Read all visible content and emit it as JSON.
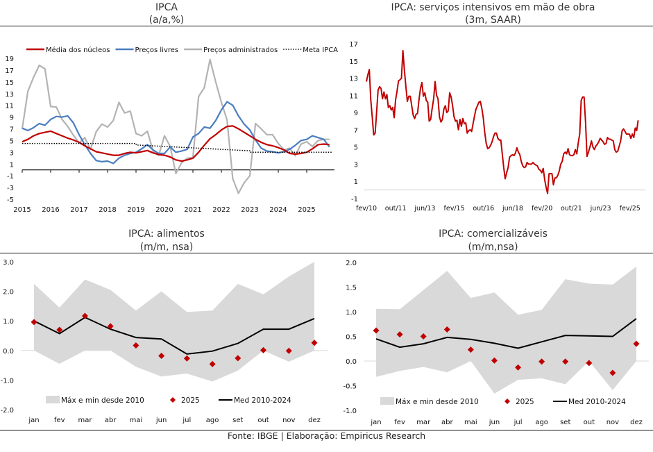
{
  "source": "Fonte: IBGE | Elaboração: Empiricus Research",
  "colors": {
    "red": "#C00000",
    "blue": "#4A7EC0",
    "gray": "#B3B3B3",
    "band": "#D9D9D9",
    "black": "#000000"
  },
  "chart_data": [
    {
      "id": "ipca",
      "type": "line",
      "title": "IPCA",
      "subtitle": "(a/a,%)",
      "ylim": [
        -5,
        19
      ],
      "yticks": [
        -5,
        -3,
        -1,
        1,
        3,
        5,
        7,
        9,
        11,
        13,
        15,
        17,
        19
      ],
      "xticks": [
        "2015",
        "2016",
        "2017",
        "2018",
        "2019",
        "2020",
        "2021",
        "2022",
        "2023",
        "2024",
        "2025"
      ],
      "xlim": [
        2015,
        2025.9
      ],
      "legend_position": "top",
      "series": [
        {
          "name": "Média dos núcleos",
          "color": "#C00000",
          "style": "solid",
          "x": [
            2015,
            2015.2,
            2015.4,
            2015.6,
            2015.8,
            2016,
            2016.2,
            2016.4,
            2016.6,
            2016.8,
            2017,
            2017.2,
            2017.4,
            2017.6,
            2017.8,
            2018,
            2018.2,
            2018.4,
            2018.6,
            2018.8,
            2019,
            2019.2,
            2019.4,
            2019.6,
            2019.8,
            2020,
            2020.2,
            2020.4,
            2020.6,
            2020.8,
            2021,
            2021.2,
            2021.4,
            2021.6,
            2021.8,
            2022,
            2022.2,
            2022.4,
            2022.6,
            2022.8,
            2023,
            2023.2,
            2023.4,
            2023.6,
            2023.8,
            2024,
            2024.2,
            2024.4,
            2024.6,
            2024.8,
            2025,
            2025.2,
            2025.4,
            2025.6,
            2025.8
          ],
          "y": [
            4.8,
            5.2,
            5.8,
            6.2,
            6.4,
            6.6,
            6.2,
            5.8,
            5.4,
            5.1,
            4.7,
            4.1,
            3.6,
            3.1,
            2.9,
            2.7,
            2.5,
            2.5,
            2.8,
            3.0,
            2.9,
            3.1,
            3.3,
            2.9,
            2.6,
            2.5,
            2.2,
            1.7,
            1.5,
            1.7,
            2.0,
            3.0,
            4.2,
            5.3,
            6.0,
            6.8,
            7.4,
            7.5,
            7.0,
            6.4,
            5.8,
            5.2,
            4.7,
            4.3,
            4.1,
            3.8,
            3.4,
            2.8,
            2.7,
            2.8,
            3.0,
            3.6,
            4.3,
            4.4,
            4.3
          ]
        },
        {
          "name": "Preços livres",
          "color": "#4A7EC0",
          "style": "solid",
          "x": [
            2015,
            2015.2,
            2015.4,
            2015.6,
            2015.8,
            2016,
            2016.2,
            2016.4,
            2016.6,
            2016.8,
            2017,
            2017.2,
            2017.4,
            2017.6,
            2017.8,
            2018,
            2018.2,
            2018.4,
            2018.6,
            2018.8,
            2019,
            2019.2,
            2019.4,
            2019.6,
            2019.8,
            2020,
            2020.2,
            2020.4,
            2020.6,
            2020.8,
            2021,
            2021.2,
            2021.4,
            2021.6,
            2021.8,
            2022,
            2022.2,
            2022.4,
            2022.6,
            2022.8,
            2023,
            2023.2,
            2023.4,
            2023.6,
            2023.8,
            2024,
            2024.2,
            2024.4,
            2024.6,
            2024.8,
            2025,
            2025.2,
            2025.4,
            2025.6,
            2025.8
          ],
          "y": [
            7.1,
            6.7,
            7.2,
            7.9,
            7.6,
            8.6,
            9.1,
            9.0,
            9.2,
            8.0,
            6.0,
            4.3,
            2.8,
            1.6,
            1.4,
            1.5,
            1.1,
            2.0,
            2.5,
            2.8,
            3.0,
            3.6,
            4.3,
            3.4,
            2.8,
            2.8,
            3.9,
            3.0,
            3.2,
            3.5,
            5.6,
            6.2,
            7.3,
            7.1,
            8.4,
            10.2,
            11.6,
            11.0,
            9.2,
            7.8,
            6.8,
            5.1,
            3.7,
            3.2,
            3.1,
            2.9,
            3.1,
            3.5,
            4.2,
            5.0,
            5.2,
            5.8,
            5.5,
            5.2,
            3.9
          ]
        },
        {
          "name": "Preços administrados",
          "color": "#B3B3B3",
          "style": "solid",
          "x": [
            2015,
            2015.2,
            2015.4,
            2015.6,
            2015.8,
            2016,
            2016.2,
            2016.4,
            2016.6,
            2016.8,
            2017,
            2017.2,
            2017.4,
            2017.6,
            2017.8,
            2018,
            2018.2,
            2018.4,
            2018.6,
            2018.8,
            2019,
            2019.2,
            2019.4,
            2019.6,
            2019.8,
            2020,
            2020.2,
            2020.4,
            2020.6,
            2020.8,
            2021,
            2021.2,
            2021.4,
            2021.6,
            2021.8,
            2022,
            2022.2,
            2022.4,
            2022.6,
            2022.8,
            2023,
            2023.2,
            2023.4,
            2023.6,
            2023.8,
            2024,
            2024.2,
            2024.4,
            2024.6,
            2024.8,
            2025,
            2025.2,
            2025.4,
            2025.6,
            2025.8
          ],
          "y": [
            7.0,
            13.4,
            15.8,
            17.8,
            17.2,
            10.8,
            10.7,
            8.6,
            7.4,
            5.9,
            4.6,
            5.5,
            3.5,
            6.5,
            7.8,
            7.3,
            8.4,
            11.5,
            9.7,
            10.0,
            6.2,
            5.8,
            6.6,
            3.2,
            2.5,
            5.8,
            4.0,
            -0.6,
            1.2,
            2.0,
            2.1,
            12.5,
            14.0,
            18.8,
            15.0,
            11.5,
            8.5,
            -1.5,
            -4.0,
            -2.2,
            -1.0,
            7.9,
            7.0,
            6.0,
            6.0,
            4.5,
            3.4,
            3.7,
            2.4,
            4.4,
            4.8,
            4.0,
            5.0,
            5.2,
            5.2
          ]
        },
        {
          "name": "Meta IPCA",
          "color": "#000000",
          "style": "dotted",
          "x": [
            2015,
            2016,
            2017,
            2018,
            2019,
            2019.01,
            2020,
            2021,
            2021.01,
            2022,
            2022.01,
            2023,
            2023.01,
            2024,
            2025,
            2025.9
          ],
          "y": [
            4.5,
            4.5,
            4.5,
            4.5,
            4.5,
            4.25,
            4.0,
            3.75,
            3.75,
            3.5,
            3.5,
            3.25,
            3.0,
            3.0,
            3.0,
            3.0
          ]
        }
      ]
    },
    {
      "id": "servicos",
      "type": "line",
      "title": "IPCA: serviços intensivos em mão de obra",
      "subtitle": "(3m, SAAR)",
      "ylim": [
        -1,
        17
      ],
      "yticks": [
        -1,
        1,
        3,
        5,
        7,
        9,
        11,
        13,
        15,
        17
      ],
      "xticks": [
        "fev/10",
        "out/11",
        "jun/13",
        "fev/15",
        "out/16",
        "jun/18",
        "fev/20",
        "out/21",
        "jun/23",
        "fev/25"
      ],
      "series": [
        {
          "name": "Serviços intensivos em mão de obra",
          "color": "#C00000",
          "t": [
            0,
            1,
            2,
            3,
            4,
            5,
            6,
            7,
            8,
            9,
            10,
            11,
            12,
            13,
            14,
            15,
            16,
            17,
            18,
            19,
            20,
            21,
            22,
            23,
            24,
            25,
            26,
            27,
            28,
            29,
            30,
            31,
            32,
            33,
            34,
            35,
            36,
            37,
            38,
            39,
            40,
            41,
            42,
            43,
            44,
            45,
            46,
            47,
            48,
            49,
            50,
            51,
            52,
            53,
            54,
            55,
            56,
            57,
            58,
            59,
            60,
            61,
            62,
            63,
            64,
            65,
            66,
            67,
            68,
            69,
            70,
            71,
            72,
            73,
            74,
            75,
            76,
            77,
            78,
            79,
            80,
            81,
            82,
            83,
            84,
            85,
            86,
            87,
            88,
            89,
            90,
            91,
            92,
            93,
            94,
            95,
            96,
            97,
            98,
            99,
            100,
            101,
            102,
            103,
            104,
            105,
            106,
            107,
            108,
            109,
            110,
            111,
            112,
            113,
            114,
            115,
            116,
            117,
            118,
            119,
            120,
            121,
            122,
            123,
            124,
            125,
            126,
            127,
            128,
            129,
            130,
            131,
            132,
            133,
            134,
            135,
            136,
            137,
            138,
            139,
            140,
            141,
            142,
            143,
            144,
            145,
            146,
            147,
            148,
            149,
            150,
            151,
            152,
            153,
            154,
            155,
            156,
            157,
            158,
            159,
            160,
            161,
            162,
            163,
            164,
            165,
            166,
            167,
            168,
            169,
            170,
            171,
            172,
            173,
            174,
            175,
            176,
            177,
            178,
            179,
            180,
            181,
            182,
            183,
            184,
            185,
            186,
            187
          ],
          "y": [
            12.6,
            13.4,
            14.0,
            10.5,
            8.5,
            6.4,
            6.6,
            9.0,
            11.6,
            12.0,
            11.8,
            10.6,
            11.4,
            10.6,
            11.1,
            9.6,
            9.8,
            9.3,
            9.6,
            8.4,
            10.5,
            11.5,
            12.7,
            12.8,
            13.0,
            16.2,
            14.0,
            12.0,
            10.3,
            10.9,
            10.9,
            9.8,
            8.7,
            8.3,
            8.8,
            8.9,
            10.5,
            11.8,
            12.5,
            10.9,
            11.3,
            10.4,
            10.2,
            8.0,
            8.2,
            9.5,
            10.6,
            12.6,
            11.0,
            10.6,
            8.5,
            7.9,
            8.2,
            9.4,
            9.8,
            9.0,
            9.2,
            11.3,
            10.8,
            9.8,
            8.5,
            8.0,
            8.1,
            7.0,
            8.2,
            7.4,
            8.3,
            7.7,
            7.8,
            6.6,
            6.9,
            7.0,
            6.8,
            7.7,
            8.6,
            9.4,
            9.8,
            10.2,
            10.3,
            9.5,
            8.4,
            6.7,
            5.4,
            4.8,
            4.9,
            5.2,
            5.6,
            6.2,
            6.6,
            6.6,
            6.0,
            5.8,
            5.8,
            4.2,
            2.6,
            1.3,
            2.0,
            2.6,
            3.8,
            4.0,
            4.1,
            4.0,
            4.3,
            4.9,
            4.4,
            4.1,
            3.3,
            2.8,
            2.6,
            2.7,
            3.2,
            3.0,
            3.0,
            3.0,
            3.2,
            3.0,
            2.9,
            2.8,
            2.4,
            2.3,
            2.0,
            2.5,
            1.2,
            0.3,
            -0.4,
            1.9,
            1.9,
            1.9,
            0.6,
            1.4,
            1.4,
            1.7,
            2.2,
            3.0,
            3.3,
            4.2,
            4.4,
            4.2,
            4.8,
            4.1,
            4.0,
            4.0,
            4.1,
            4.7,
            4.2,
            5.5,
            6.5,
            10.4,
            10.8,
            10.8,
            7.9,
            3.9,
            4.4,
            5.0,
            5.7,
            5.0,
            4.7,
            5.1,
            5.3,
            5.6,
            6.0,
            5.8,
            5.6,
            5.3,
            5.4,
            6.1,
            5.9,
            5.9,
            5.8,
            5.7,
            4.7,
            4.4,
            4.5,
            5.1,
            5.7,
            6.9,
            7.1,
            6.8,
            6.5,
            6.5,
            6.5,
            6.0,
            6.5,
            6.1,
            7.2,
            6.9,
            8.1
          ]
        }
      ]
    },
    {
      "id": "alimentos",
      "type": "area",
      "title": "IPCA: alimentos",
      "subtitle": "(m/m, nsa)",
      "ylim": [
        -2.0,
        3.0
      ],
      "yticks": [
        "-2.0",
        "-1.0",
        "0.0",
        "1.0",
        "2.0",
        "3.0"
      ],
      "categories": [
        "jan",
        "fev",
        "mar",
        "abr",
        "mai",
        "jun",
        "jul",
        "ago",
        "set",
        "out",
        "nov",
        "dez"
      ],
      "legend_position": "bottom",
      "band": {
        "name": "Máx e min desde 2010",
        "max": [
          2.25,
          1.45,
          2.4,
          2.05,
          1.35,
          2.0,
          1.3,
          1.35,
          2.25,
          1.9,
          2.5,
          3.0
        ],
        "min": [
          0.0,
          -0.45,
          0.0,
          0.0,
          -0.55,
          -0.88,
          -0.78,
          -1.05,
          -0.68,
          0.0,
          -0.38,
          0.0
        ]
      },
      "series": [
        {
          "name": "2025",
          "type": "scatter",
          "marker": "diamond",
          "values": [
            0.96,
            0.7,
            1.17,
            0.82,
            0.17,
            -0.18,
            -0.27,
            -0.46,
            -0.26,
            0.01,
            -0.01,
            0.26
          ]
        },
        {
          "name": "Med 2010-2024",
          "type": "line",
          "values": [
            1.0,
            0.57,
            1.12,
            0.72,
            0.44,
            0.39,
            -0.12,
            -0.02,
            0.24,
            0.72,
            0.72,
            1.08
          ]
        }
      ]
    },
    {
      "id": "comercializaveis",
      "type": "area",
      "title": "IPCA: comercializáveis",
      "subtitle": "(m/m,nsa)",
      "ylim": [
        -1.0,
        2.0
      ],
      "yticks": [
        "-1.0",
        "-0.5",
        "0.0",
        "0.5",
        "1.0",
        "1.5",
        "2.0"
      ],
      "categories": [
        "jan",
        "fev",
        "mar",
        "abr",
        "mai",
        "jun",
        "jul",
        "ago",
        "set",
        "out",
        "nov",
        "dez"
      ],
      "legend_position": "bottom",
      "band": {
        "name": "Máx e min desde 2010",
        "max": [
          1.06,
          1.05,
          1.44,
          1.83,
          1.28,
          1.39,
          0.94,
          1.04,
          1.66,
          1.57,
          1.55,
          1.92
        ],
        "min": [
          -0.32,
          -0.2,
          -0.12,
          -0.23,
          0.0,
          -0.66,
          -0.38,
          -0.35,
          -0.47,
          0.0,
          -0.59,
          0.0
        ]
      },
      "series": [
        {
          "name": "2025",
          "type": "scatter",
          "marker": "diamond",
          "values": [
            0.62,
            0.54,
            0.5,
            0.64,
            0.23,
            0.01,
            -0.13,
            -0.01,
            -0.01,
            -0.04,
            -0.24,
            0.35
          ]
        },
        {
          "name": "Med 2010-2024",
          "type": "line",
          "values": [
            0.45,
            0.28,
            0.35,
            0.48,
            0.44,
            0.36,
            0.26,
            0.39,
            0.52,
            0.51,
            0.5,
            0.86
          ]
        }
      ]
    }
  ]
}
